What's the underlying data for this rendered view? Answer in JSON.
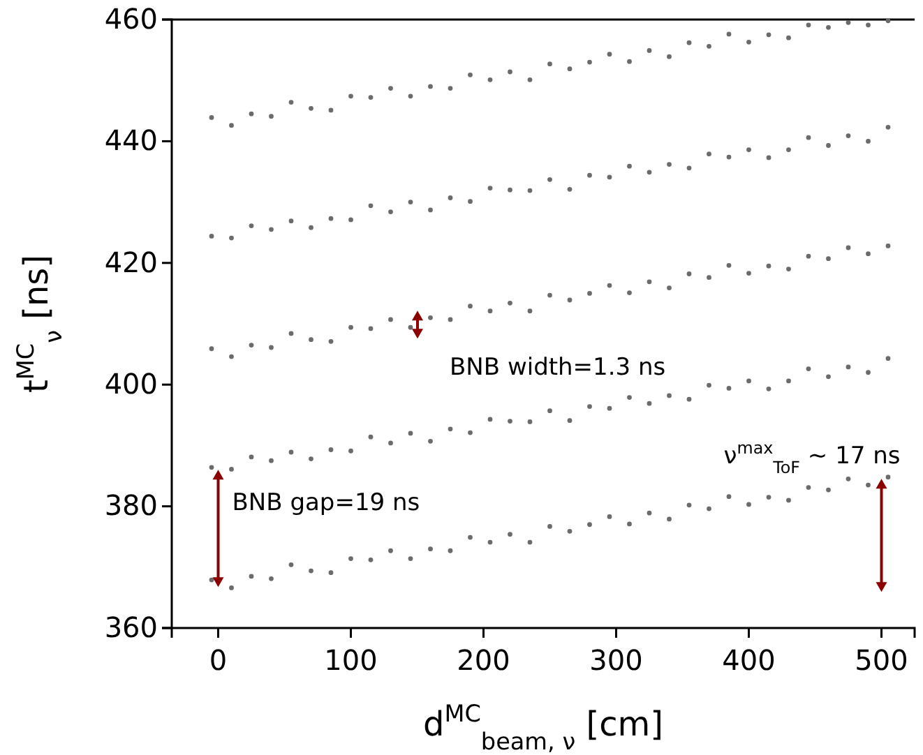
{
  "chart_data": {
    "type": "scatter",
    "xlabel": "d$^{MC}$$_{beam, ν}$ [cm]",
    "ylabel": "t$^{MC}$$_{ν}$ [ns]",
    "x": [
      -5,
      10,
      25,
      40,
      55,
      70,
      85,
      100,
      115,
      130,
      145,
      160,
      175,
      190,
      205,
      220,
      235,
      250,
      265,
      280,
      295,
      310,
      325,
      340,
      355,
      370,
      385,
      400,
      415,
      430,
      445,
      460,
      475,
      490,
      505
    ],
    "series": [
      {
        "color": "#6b6b6b",
        "values": [
          367.9,
          366.6,
          368.5,
          368.1,
          370.4,
          369.4,
          369.1,
          371.4,
          371.2,
          372.7,
          371.4,
          373.0,
          372.7,
          374.9,
          374.1,
          375.4,
          374.1,
          376.7,
          375.9,
          377.0,
          378.3,
          377.1,
          378.9,
          377.9,
          380.2,
          379.6,
          381.6,
          380.3,
          381.5,
          381.0,
          383.1,
          382.7,
          384.5,
          383.5,
          384.8
        ]
      },
      {
        "color": "#6b6b6b",
        "values": [
          386.4,
          386.1,
          388.1,
          387.5,
          388.9,
          387.8,
          389.3,
          389.1,
          391.4,
          390.4,
          392.0,
          390.7,
          392.7,
          392.1,
          394.3,
          394.0,
          393.9,
          395.7,
          394.1,
          396.4,
          396.1,
          397.9,
          396.9,
          398.2,
          397.6,
          399.9,
          399.4,
          400.6,
          399.3,
          400.6,
          402.6,
          401.3,
          402.9,
          402.0,
          404.3
        ]
      },
      {
        "color": "#6b6b6b",
        "values": [
          405.9,
          404.6,
          406.5,
          406.1,
          408.4,
          407.4,
          407.1,
          409.4,
          409.2,
          410.7,
          409.4,
          411.0,
          410.7,
          412.9,
          412.1,
          413.4,
          412.1,
          414.7,
          413.9,
          415.0,
          416.3,
          415.1,
          416.9,
          415.9,
          418.2,
          417.6,
          419.6,
          418.3,
          419.5,
          419.0,
          421.1,
          420.7,
          422.5,
          421.5,
          422.8
        ]
      },
      {
        "color": "#6b6b6b",
        "values": [
          424.4,
          424.1,
          426.1,
          425.5,
          426.9,
          425.8,
          427.3,
          427.1,
          429.4,
          428.4,
          430.0,
          428.7,
          430.7,
          430.1,
          432.3,
          432.0,
          431.9,
          433.7,
          432.1,
          434.4,
          434.1,
          435.9,
          434.9,
          436.2,
          435.6,
          437.9,
          437.4,
          438.6,
          437.3,
          438.6,
          440.6,
          439.3,
          440.9,
          440.0,
          442.3
        ]
      },
      {
        "color": "#6b6b6b",
        "values": [
          443.9,
          442.6,
          444.5,
          444.1,
          446.4,
          445.4,
          445.1,
          447.4,
          447.2,
          448.7,
          447.4,
          449.0,
          448.7,
          450.9,
          450.1,
          451.4,
          450.1,
          452.7,
          451.9,
          453.0,
          454.3,
          453.1,
          454.9,
          453.9,
          456.2,
          455.6,
          457.6,
          456.3,
          457.5,
          457.0,
          459.1,
          458.7,
          459.5,
          459.1,
          459.8
        ]
      }
    ],
    "xlim": [
      -35,
      525
    ],
    "xticks": [
      0,
      100,
      200,
      300,
      400,
      500
    ],
    "ylim": [
      360,
      460
    ],
    "yticks": [
      360,
      380,
      400,
      420,
      440,
      460
    ],
    "marker": "circle",
    "grid": false,
    "annotations": [
      {
        "text": "BNB width=1.3 ns",
        "x": 145,
        "y": 409.4
      },
      {
        "text": "BNB gap=19 ns",
        "x": 0,
        "y": 386
      },
      {
        "text": "ν$^{max}$$_{ToF}$ ~ 17 ns",
        "x": 500,
        "y": 384.5
      }
    ]
  }
}
